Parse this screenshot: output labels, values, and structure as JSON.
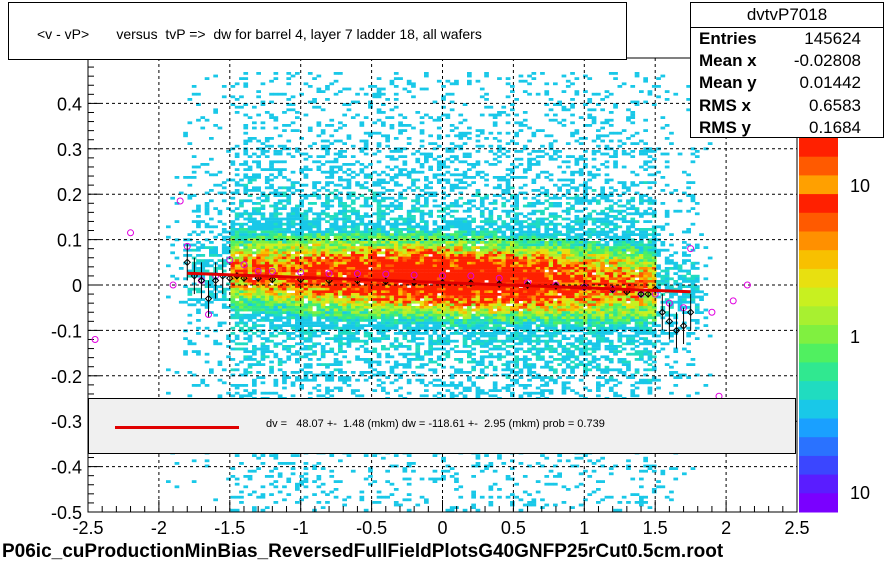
{
  "title": "<v - vP>       versus  tvP =>  dw for barrel 4, layer 7 ladder 18, all wafers",
  "stats": {
    "name": "dvtvP7018",
    "rows": [
      {
        "label": "Entries",
        "value": "145624"
      },
      {
        "label": "Mean x",
        "value": "-0.02808"
      },
      {
        "label": "Mean y",
        "value": "0.01442"
      },
      {
        "label": "RMS x",
        "value": "0.6583"
      },
      {
        "label": "RMS y",
        "value": "0.1684"
      }
    ]
  },
  "fit_text": "dv =   48.07 +-  1.48 (mkm) dw = -118.61 +-  2.95 (mkm) prob = 0.739",
  "footer": "P06ic_cuProductionMinBias_ReversedFullFieldPlotsG40GNFP25rCut0.5cm.root",
  "colors": {
    "fit_line": "#e00000",
    "profile_black": "#000000",
    "profile_magenta": "#e000e0"
  },
  "chart_data": {
    "type": "heatmap",
    "title": "<v - vP>       versus  tvP =>  dw for barrel 4, layer 7 ladder 18, all wafers",
    "xlim": [
      -2.5,
      2.5
    ],
    "ylim": [
      -0.5,
      0.5
    ],
    "x_ticks": [
      "-2.5",
      "-2",
      "-1.5",
      "-1",
      "-0.5",
      "0",
      "0.5",
      "1",
      "1.5",
      "2",
      "2.5"
    ],
    "y_ticks": [
      "-0.5",
      "-0.4",
      "-0.3",
      "-0.2",
      "-0.1",
      "0",
      "0.1",
      "0.2",
      "0.3",
      "0.4"
    ],
    "grid": true,
    "colorbar": {
      "scale": "log",
      "ticks": [
        "10",
        "1",
        "10"
      ]
    },
    "fit_line": {
      "x": [
        -1.8,
        1.75
      ],
      "y": [
        0.026,
        -0.015
      ]
    },
    "profile_black": {
      "x": [
        -1.8,
        -1.75,
        -1.7,
        -1.65,
        -1.6,
        -1.55,
        -1.5,
        -1.45,
        -1.4,
        -1.3,
        -1.2,
        -1.0,
        -0.8,
        -0.6,
        -0.4,
        -0.2,
        0.0,
        0.2,
        0.4,
        0.6,
        0.8,
        1.0,
        1.2,
        1.3,
        1.4,
        1.45,
        1.5,
        1.55,
        1.6,
        1.65,
        1.7,
        1.75
      ],
      "y": [
        0.05,
        0.02,
        0.01,
        -0.03,
        0.01,
        0.02,
        0.015,
        0.02,
        0.015,
        0.015,
        0.012,
        0.012,
        0.01,
        0.01,
        0.008,
        0.006,
        0.005,
        0.004,
        0.002,
        0.0,
        -0.002,
        -0.005,
        -0.01,
        -0.015,
        -0.02,
        -0.02,
        -0.01,
        -0.06,
        -0.08,
        -0.1,
        -0.09,
        -0.06
      ]
    },
    "profile_magenta": {
      "x": [
        -2.45,
        -2.2,
        -1.9,
        -1.85,
        -1.8,
        -1.7,
        -1.65,
        -1.6,
        -1.5,
        -1.4,
        -1.3,
        -1.2,
        -1.0,
        -0.8,
        -0.6,
        -0.4,
        -0.2,
        0.0,
        0.2,
        0.4,
        0.6,
        0.8,
        1.0,
        1.2,
        1.4,
        1.5,
        1.6,
        1.7,
        1.75,
        1.9,
        1.95,
        2.05,
        2.15
      ],
      "y": [
        -0.12,
        0.115,
        0.0,
        0.185,
        0.085,
        0.01,
        -0.065,
        0.02,
        0.055,
        0.045,
        0.03,
        0.03,
        0.028,
        0.025,
        0.025,
        0.024,
        0.022,
        0.02,
        0.02,
        0.015,
        0.005,
        0.0,
        -0.005,
        -0.01,
        -0.02,
        -0.02,
        -0.04,
        -0.05,
        0.08,
        -0.06,
        -0.245,
        -0.035,
        0.0
      ]
    }
  }
}
